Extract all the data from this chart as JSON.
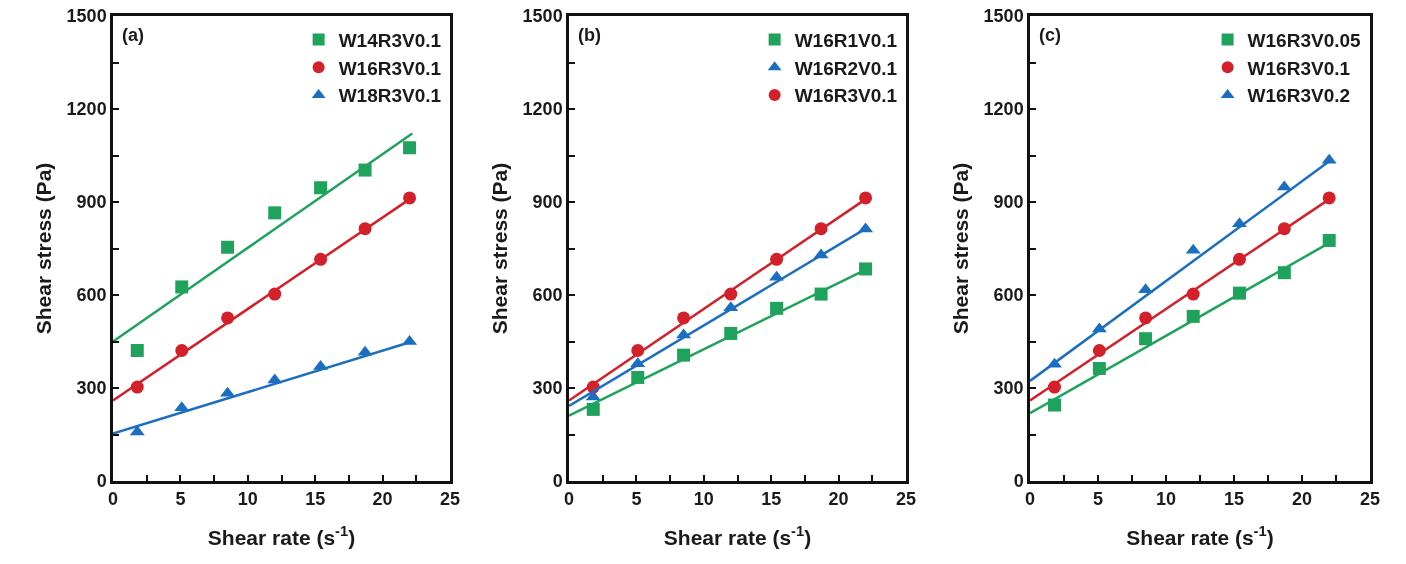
{
  "chart_data": [
    {
      "type": "scatter",
      "title": "(a)",
      "xlabel": "Shear rate (s$^{-1}$)",
      "ylabel": "Shear stress (Pa)",
      "xlim": [
        0,
        25
      ],
      "ylim": [
        0,
        1500
      ],
      "xticks": [
        0,
        {
          "value": 2.5,
          "label": null
        },
        5,
        {
          "value": 7.5,
          "label": null
        },
        10,
        {
          "value": 12.5,
          "label": null
        },
        15,
        {
          "value": 17.5,
          "label": null
        },
        20,
        {
          "value": 22.5,
          "label": null
        },
        25
      ],
      "yticks": [
        0,
        {
          "value": 150,
          "label": null
        },
        300,
        {
          "value": 450,
          "label": null
        },
        600,
        {
          "value": 750,
          "label": null
        },
        900,
        {
          "value": 1050,
          "label": null
        },
        1200,
        {
          "value": 1350,
          "label": null
        },
        1500
      ],
      "legend": "top right",
      "series": [
        {
          "name": "W14R3V0.1",
          "color": "#1fa35c",
          "marker": "square",
          "x": [
            1.8,
            5.1,
            8.5,
            12.0,
            15.4,
            18.7,
            22.0
          ],
          "values": [
            421,
            626,
            754,
            865,
            946,
            1003,
            1075
          ]
        },
        {
          "name": "W16R3V0.1",
          "color": "#d3202a",
          "marker": "circle",
          "x": [
            1.8,
            5.1,
            8.5,
            12.0,
            15.4,
            18.7,
            22.0
          ],
          "values": [
            303,
            421,
            526,
            603,
            715,
            814,
            913
          ]
        },
        {
          "name": "W18R3V0.1",
          "color": "#1b6ec0",
          "marker": "triangle",
          "x": [
            1.8,
            5.1,
            8.5,
            12.0,
            15.4,
            18.7,
            22.0
          ],
          "values": [
            158,
            236,
            283,
            326,
            369,
            415,
            450
          ]
        },
        {
          "type": "line",
          "color": "#1fa35c",
          "x": [
            0,
            22.2
          ],
          "values": [
            450,
            1121
          ]
        },
        {
          "type": "line",
          "color": "#d3202a",
          "x": [
            0,
            22.2
          ],
          "values": [
            260,
            915
          ]
        },
        {
          "type": "line",
          "color": "#1b6ec0",
          "x": [
            0,
            22.2
          ],
          "values": [
            153,
            450
          ]
        }
      ]
    },
    {
      "type": "scatter",
      "title": "(b)",
      "xlabel": "Shear rate (s$^{-1}$)",
      "ylabel": "Shear stress (Pa)",
      "xlim": [
        0,
        25
      ],
      "ylim": [
        0,
        1500
      ],
      "xticks": [
        0,
        {
          "value": 2.5,
          "label": null
        },
        5,
        {
          "value": 7.5,
          "label": null
        },
        10,
        {
          "value": 12.5,
          "label": null
        },
        15,
        {
          "value": 17.5,
          "label": null
        },
        20,
        {
          "value": 22.5,
          "label": null
        },
        25
      ],
      "yticks": [
        0,
        {
          "value": 150,
          "label": null
        },
        300,
        {
          "value": 450,
          "label": null
        },
        600,
        {
          "value": 750,
          "label": null
        },
        900,
        {
          "value": 1050,
          "label": null
        },
        1200,
        {
          "value": 1350,
          "label": null
        },
        1500
      ],
      "legend": "top right",
      "series": [
        {
          "name": "W16R1V0.1",
          "color": "#1fa35c",
          "marker": "square",
          "x": [
            1.8,
            5.1,
            8.5,
            12.0,
            15.4,
            18.7,
            22.0
          ],
          "values": [
            231,
            334,
            406,
            476,
            557,
            603,
            684
          ]
        },
        {
          "name": "W16R2V0.1",
          "color": "#1b6ec0",
          "marker": "triangle",
          "x": [
            1.8,
            5.1,
            8.5,
            12.0,
            15.4,
            18.7,
            22.0
          ],
          "values": [
            271,
            378,
            471,
            559,
            657,
            729,
            813
          ]
        },
        {
          "name": "W16R3V0.1",
          "color": "#d3202a",
          "marker": "circle",
          "x": [
            1.8,
            5.1,
            8.5,
            12.0,
            15.4,
            18.7,
            22.0
          ],
          "values": [
            303,
            421,
            526,
            603,
            715,
            814,
            913
          ]
        },
        {
          "type": "line",
          "color": "#1fa35c",
          "x": [
            0,
            22.2
          ],
          "values": [
            211,
            686
          ]
        },
        {
          "type": "line",
          "color": "#1b6ec0",
          "x": [
            0,
            22.2
          ],
          "values": [
            242,
            819
          ]
        },
        {
          "type": "line",
          "color": "#d3202a",
          "x": [
            0,
            22.2
          ],
          "values": [
            260,
            915
          ]
        }
      ]
    },
    {
      "type": "scatter",
      "title": "(c)",
      "xlabel": "Shear rate (s$^{-1}$)",
      "ylabel": "Shear stress (Pa)",
      "xlim": [
        0,
        25
      ],
      "ylim": [
        0,
        1500
      ],
      "xticks": [
        0,
        {
          "value": 2.5,
          "label": null
        },
        5,
        {
          "value": 7.5,
          "label": null
        },
        10,
        {
          "value": 12.5,
          "label": null
        },
        15,
        {
          "value": 17.5,
          "label": null
        },
        20,
        {
          "value": 22.5,
          "label": null
        },
        25
      ],
      "yticks": [
        0,
        {
          "value": 150,
          "label": null
        },
        300,
        {
          "value": 450,
          "label": null
        },
        600,
        {
          "value": 750,
          "label": null
        },
        900,
        {
          "value": 1050,
          "label": null
        },
        1200,
        {
          "value": 1350,
          "label": null
        },
        1500
      ],
      "legend": "top right",
      "series": [
        {
          "name": "W16R3V0.05",
          "color": "#1fa35c",
          "marker": "square",
          "x": [
            1.8,
            5.1,
            8.5,
            12.0,
            15.4,
            18.7,
            22.0
          ],
          "values": [
            245,
            363,
            459,
            531,
            606,
            672,
            776
          ]
        },
        {
          "name": "W16R3V0.1",
          "color": "#d3202a",
          "marker": "circle",
          "x": [
            1.8,
            5.1,
            8.5,
            12.0,
            15.4,
            18.7,
            22.0
          ],
          "values": [
            303,
            421,
            526,
            603,
            715,
            814,
            913
          ]
        },
        {
          "name": "W16R3V0.2",
          "color": "#1b6ec0",
          "marker": "triangle",
          "x": [
            1.8,
            5.1,
            8.5,
            12.0,
            15.4,
            18.7,
            22.0
          ],
          "values": [
            377,
            490,
            617,
            744,
            830,
            948,
            1035
          ]
        },
        {
          "type": "line",
          "color": "#1fa35c",
          "x": [
            0,
            22.2
          ],
          "values": [
            219,
            773
          ]
        },
        {
          "type": "line",
          "color": "#d3202a",
          "x": [
            0,
            22.2
          ],
          "values": [
            260,
            915
          ]
        },
        {
          "type": "line",
          "color": "#1b6ec0",
          "x": [
            0,
            22.2
          ],
          "values": [
            323,
            1038
          ]
        }
      ]
    }
  ]
}
